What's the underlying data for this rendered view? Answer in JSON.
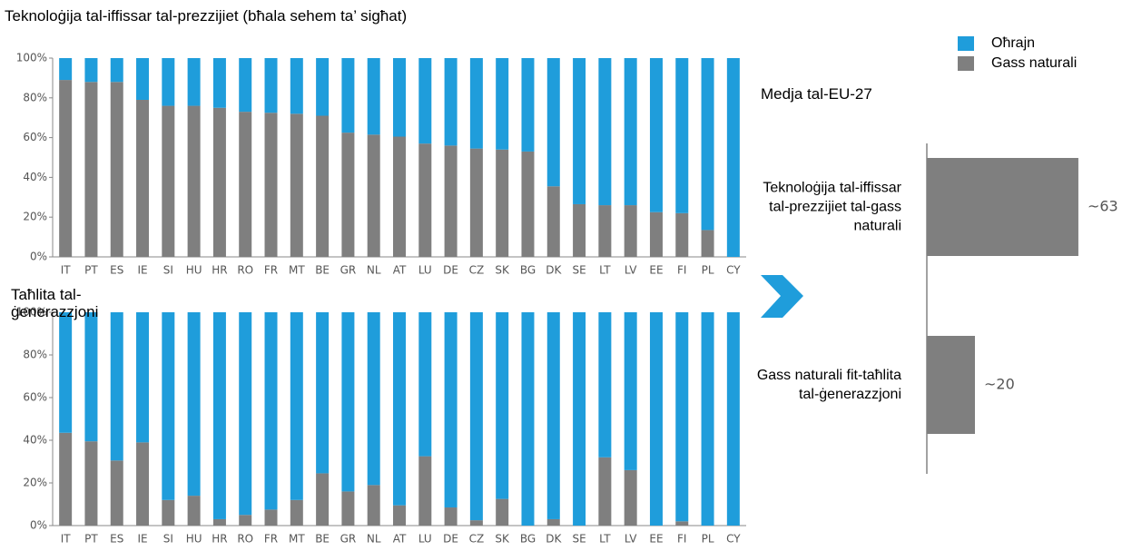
{
  "legend": {
    "series": [
      {
        "name": "Oħrajn",
        "color": "#1f9ddb"
      },
      {
        "name": "Gass naturali",
        "color": "#7f7f7f"
      }
    ]
  },
  "chart_data": [
    {
      "type": "bar",
      "title": "Teknoloġija tal-iffissar tal-prezzijiet (bħala sehem ta’ sigħat)",
      "annotation": "Medja tal-EU-27",
      "categories": [
        "IT",
        "PT",
        "ES",
        "IE",
        "SI",
        "HU",
        "HR",
        "RO",
        "FR",
        "MT",
        "BE",
        "GR",
        "NL",
        "AT",
        "LU",
        "DE",
        "CZ",
        "SK",
        "BG",
        "DK",
        "SE",
        "LT",
        "LV",
        "EE",
        "FI",
        "PL",
        "CY"
      ],
      "series": [
        {
          "color": "#1f9ddb",
          "values": [
            11,
            12,
            12,
            21,
            24,
            24,
            25,
            27,
            27.5,
            28,
            29,
            37.5,
            38.5,
            39.5,
            43,
            44,
            45.5,
            46,
            47,
            64.5,
            73.5,
            74,
            74,
            77.5,
            78,
            86.5,
            100
          ]
        },
        {
          "color": "#7f7f7f",
          "values": [
            89,
            88,
            88,
            79,
            76,
            76,
            75,
            73,
            72.5,
            72,
            71,
            62.5,
            61.5,
            60.5,
            57,
            56,
            54.5,
            54,
            53,
            35.5,
            26.5,
            26,
            26,
            22.5,
            22,
            13.5,
            0
          ]
        }
      ],
      "ylim": [
        0,
        100
      ],
      "yticks": [
        {
          "value": 0,
          "label": "0%"
        },
        {
          "value": 20,
          "label": "20%"
        },
        {
          "value": 40,
          "label": "40%"
        },
        {
          "value": 60,
          "label": "60%"
        },
        {
          "value": 80,
          "label": "80%"
        },
        {
          "value": 100,
          "label": "100%"
        }
      ],
      "grid": false
    },
    {
      "type": "bar",
      "title": "Taħlita tal-ġenerazzjoni",
      "categories": [
        "IT",
        "PT",
        "ES",
        "IE",
        "SI",
        "HU",
        "HR",
        "RO",
        "FR",
        "MT",
        "BE",
        "GR",
        "NL",
        "AT",
        "LU",
        "DE",
        "CZ",
        "SK",
        "BG",
        "DK",
        "SE",
        "LT",
        "LV",
        "EE",
        "FI",
        "PL",
        "CY"
      ],
      "series": [
        {
          "color": "#1f9ddb",
          "values": [
            56.5,
            60.5,
            69.5,
            61,
            88,
            86,
            97,
            95,
            92.5,
            88,
            75.5,
            84,
            81,
            90.5,
            67.5,
            91.5,
            97.5,
            87.5,
            100,
            97,
            100,
            68,
            74,
            100,
            98,
            100,
            100
          ]
        },
        {
          "color": "#7f7f7f",
          "values": [
            43.5,
            39.5,
            30.5,
            39,
            12,
            14,
            3,
            5,
            7.5,
            12,
            24.5,
            16,
            19,
            9.5,
            32.5,
            8.5,
            2.5,
            12.5,
            0,
            3,
            0,
            32,
            26,
            0,
            2,
            0,
            0
          ]
        }
      ],
      "ylim": [
        0,
        100
      ],
      "yticks": [
        {
          "value": 0,
          "label": "0%"
        },
        {
          "value": 20,
          "label": "20%"
        },
        {
          "value": 40,
          "label": "40%"
        },
        {
          "value": 60,
          "label": "60%"
        },
        {
          "value": 80,
          "label": "80%"
        },
        {
          "value": 100,
          "label": "100%"
        }
      ],
      "grid": false
    },
    {
      "type": "barh",
      "categories": [
        "Teknoloġija tal-iffissar tal-prezzijiet tal-gass naturali",
        "Gass naturali fit-taħlita tal-ġenerazzjoni"
      ],
      "values": [
        63,
        20
      ],
      "value_labels": [
        "~63",
        "~20"
      ],
      "color": "#7f7f7f",
      "xlim": [
        0,
        80
      ]
    }
  ]
}
